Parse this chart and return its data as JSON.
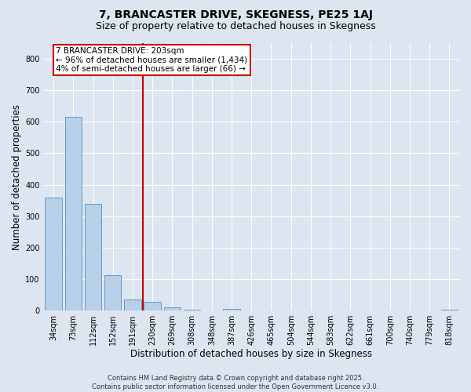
{
  "title": "7, BRANCASTER DRIVE, SKEGNESS, PE25 1AJ",
  "subtitle": "Size of property relative to detached houses in Skegness",
  "xlabel": "Distribution of detached houses by size in Skegness",
  "ylabel": "Number of detached properties",
  "bin_labels": [
    "34sqm",
    "73sqm",
    "112sqm",
    "152sqm",
    "191sqm",
    "230sqm",
    "269sqm",
    "308sqm",
    "348sqm",
    "387sqm",
    "426sqm",
    "465sqm",
    "504sqm",
    "544sqm",
    "583sqm",
    "622sqm",
    "661sqm",
    "700sqm",
    "740sqm",
    "779sqm",
    "818sqm"
  ],
  "bar_heights": [
    360,
    615,
    340,
    112,
    35,
    28,
    10,
    3,
    0,
    5,
    0,
    0,
    0,
    0,
    0,
    0,
    0,
    0,
    0,
    0,
    3
  ],
  "bar_color": "#b8cfe8",
  "bar_edge_color": "#6699cc",
  "property_line_color": "#cc0000",
  "annotation_line1": "7 BRANCASTER DRIVE: 203sqm",
  "annotation_line2": "← 96% of detached houses are smaller (1,434)",
  "annotation_line3": "4% of semi-detached houses are larger (66) →",
  "annotation_box_color": "#cc0000",
  "ylim": [
    0,
    850
  ],
  "yticks": [
    0,
    100,
    200,
    300,
    400,
    500,
    600,
    700,
    800
  ],
  "footer_text": "Contains HM Land Registry data © Crown copyright and database right 2025.\nContains public sector information licensed under the Open Government Licence v3.0.",
  "bg_color": "#dde5f0",
  "plot_bg_color": "#dde5f0",
  "grid_color": "#ffffff",
  "title_fontsize": 10,
  "subtitle_fontsize": 9,
  "tick_fontsize": 7,
  "label_fontsize": 8.5,
  "annotation_fontsize": 7.5,
  "footer_fontsize": 6
}
